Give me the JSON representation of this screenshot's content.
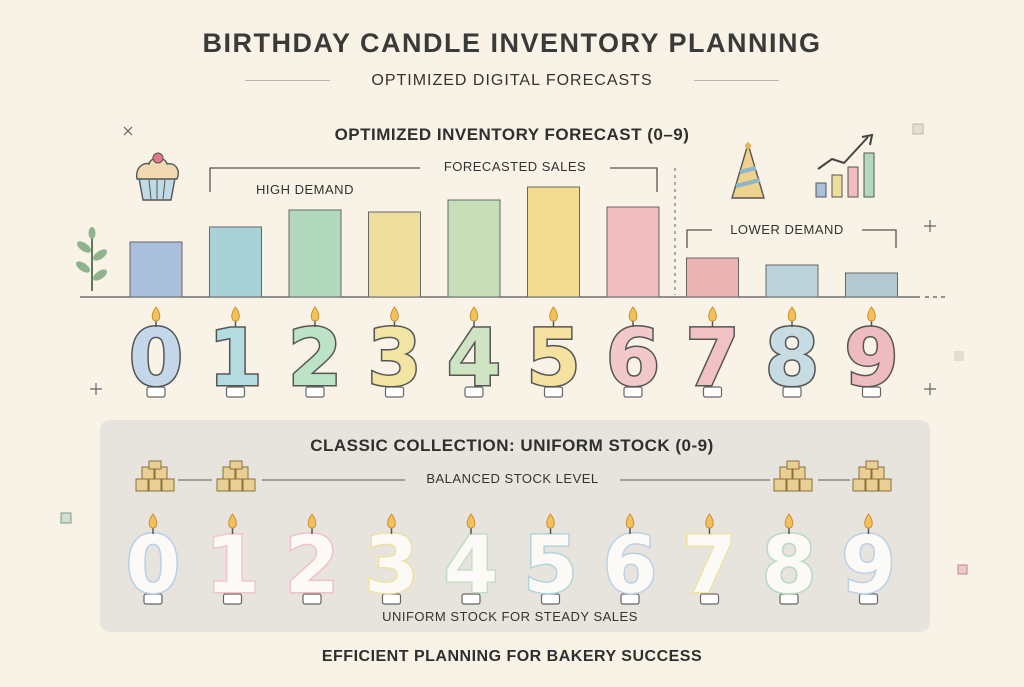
{
  "header": {
    "title": "BIRTHDAY CANDLE INVENTORY PLANNING",
    "subtitle": "OPTIMIZED DIGITAL FORECASTS"
  },
  "chart_data": [
    {
      "type": "bar",
      "title": "OPTIMIZED INVENTORY FORECAST (0–9)",
      "categories": [
        "0",
        "1",
        "2",
        "3",
        "4",
        "5",
        "6",
        "7",
        "8",
        "9"
      ],
      "values": [
        5.5,
        7.0,
        8.7,
        8.5,
        9.7,
        11.0,
        9.0,
        3.9,
        3.2,
        2.4
      ],
      "ylim": [
        0,
        12
      ],
      "annotations": {
        "forecasted_sales": "FORECASTED SALES",
        "high_demand": "HIGH DEMAND",
        "lower_demand": "LOWER DEMAND"
      },
      "colors": [
        "#a9bfdc",
        "#a9d2d8",
        "#b2d9bd",
        "#eddf9b",
        "#c8deb8",
        "#f3dc90",
        "#f0bcc0",
        "#ecb3b5",
        "#bcd3da",
        "#b4c8d2"
      ],
      "candle_colors": [
        "#c4d6ea",
        "#b4dbe0",
        "#bde3c6",
        "#f2e4a2",
        "#cfe4c3",
        "#f6e2a0",
        "#f3c8ca",
        "#f1c2c4",
        "#c6dbe2",
        "#eebcc0"
      ]
    },
    {
      "type": "table",
      "title": "CLASSIC COLLECTION: UNIFORM STOCK (0-9)",
      "categories": [
        "0",
        "1",
        "2",
        "3",
        "4",
        "5",
        "6",
        "7",
        "8",
        "9"
      ],
      "label_top": "BALANCED STOCK LEVEL",
      "label_bottom": "UNIFORM STOCK FOR STEADY SALES",
      "outline_colors": [
        "#b9cfe6",
        "#f1c5c9",
        "#f0c2c6",
        "#efe0a3",
        "#c5ddc3",
        "#b4d4dc",
        "#bcd0e6",
        "#f0e1a2",
        "#b9d9c3",
        "#bcd0e6"
      ]
    }
  ],
  "footer": {
    "text": "EFFICIENT PLANNING FOR BAKERY SUCCESS"
  }
}
